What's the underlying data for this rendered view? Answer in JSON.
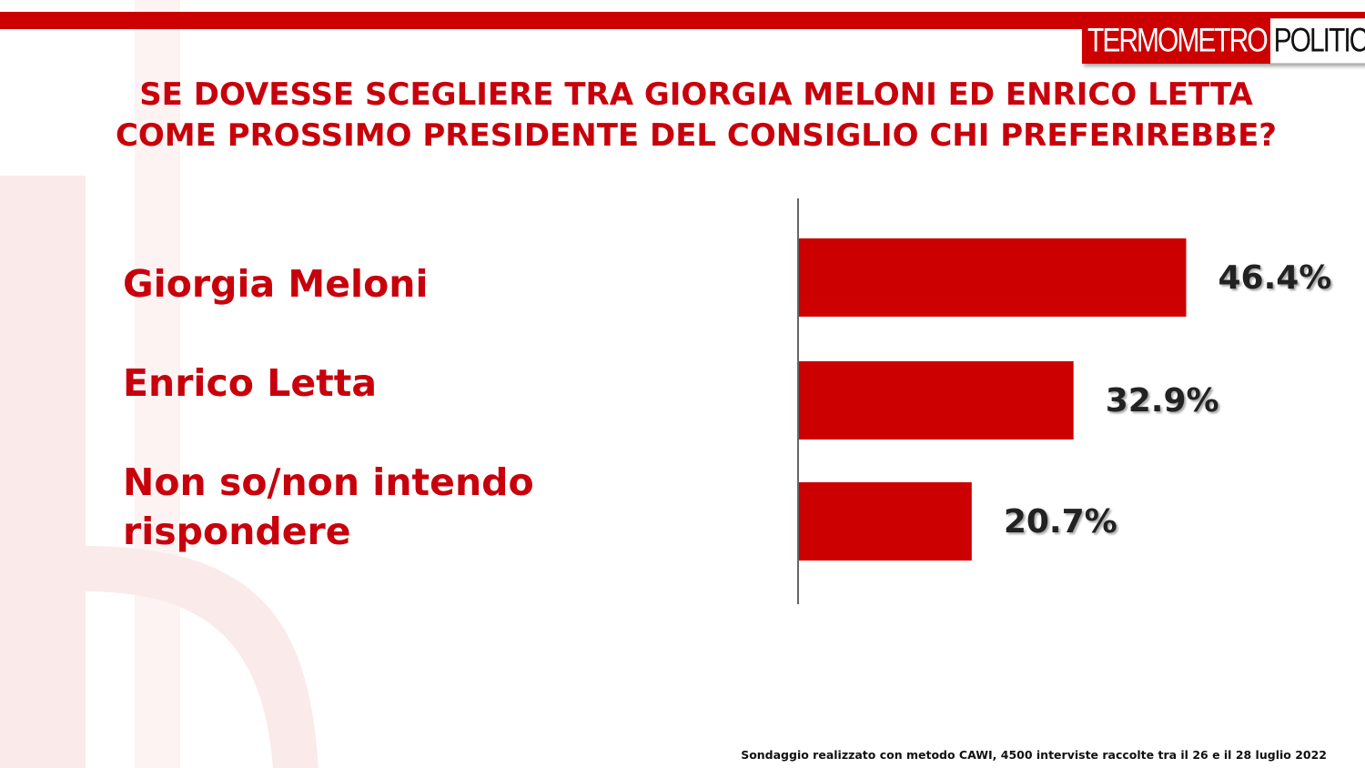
{
  "brand": {
    "logo_part1": "TERMOMETRO",
    "logo_part2": "POLITICO",
    "accent_color": "#cc0000",
    "text_color": "#c8000b"
  },
  "chart_data": {
    "type": "bar",
    "orientation": "horizontal",
    "title": "SE DOVESSE SCEGLIERE TRA GIORGIA MELONI ED ENRICO LETTA COME PROSSIMO PRESIDENTE DEL CONSIGLIO CHI PREFERIREBBE?",
    "categories": [
      "Giorgia Meloni",
      "Enrico Letta",
      "Non so/non intendo rispondere"
    ],
    "values": [
      46.4,
      32.9,
      20.7
    ],
    "value_labels": [
      "46.4%",
      "32.9%",
      "20.7%"
    ],
    "unit": "%",
    "bar_color": "#cc0000",
    "xlim": [
      0,
      100
    ],
    "grid": false,
    "legend": "none"
  },
  "footnote": "Sondaggio realizzato con metodo CAWI, 4500 interviste raccolte tra il 26 e il 28 luglio 2022"
}
